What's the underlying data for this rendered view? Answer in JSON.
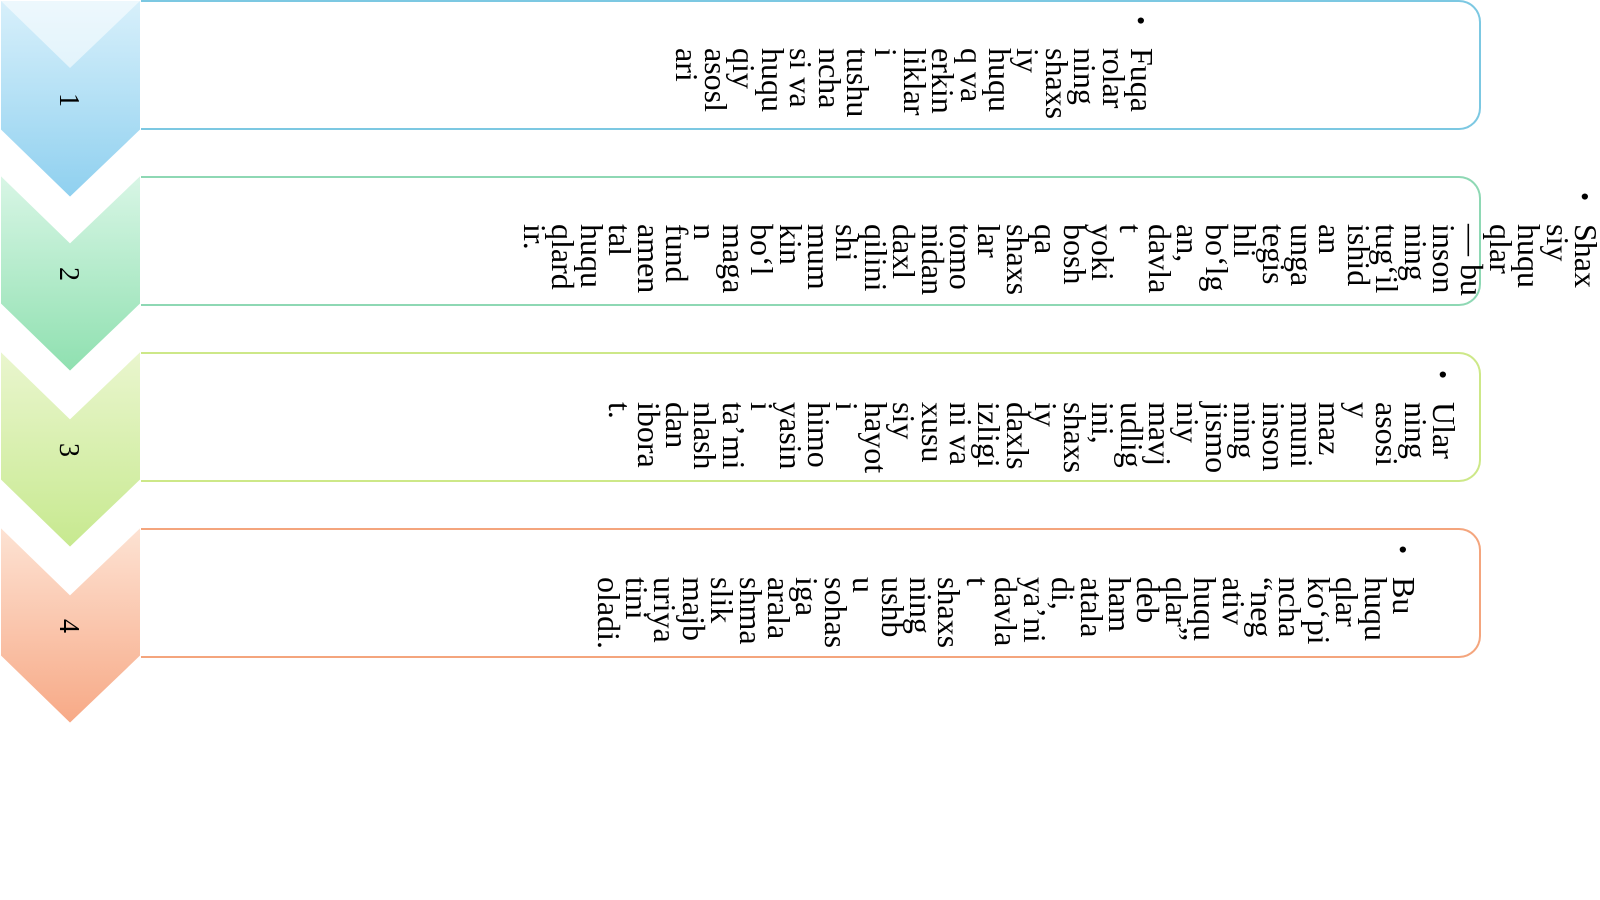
{
  "steps": [
    {
      "number": "1",
      "color_top": "#d8f0fb",
      "color_bottom": "#8fd0ef"
    },
    {
      "number": "2",
      "color_top": "#d9f6e6",
      "color_bottom": "#8fe0b0"
    },
    {
      "number": "3",
      "color_top": "#eaf6cf",
      "color_bottom": "#c7e98f"
    },
    {
      "number": "4",
      "color_top": "#fde3d4",
      "color_bottom": "#f7a986"
    }
  ],
  "overflow_text": {
    "bullet": "•",
    "columns": "Shax\nsiy\nhuqu\nqlar\n— bu\ninson\nning\ntug‘il\nishid\nan\nunga\ntegis\nhli\nbo‘lg\nan,\ndavla\nt\nyoki\nbosh\nqa\nshaxs\nlar\ntomo\nnidan\ndaxl\nqilini\nshi\nmum\nkin\nbo‘l\nmaga\nn\nfund\namen\ntal\nhuqu\nqlard\nir."
  },
  "panels": [
    {
      "bullet": "•",
      "columns": "Fuqa\nrolar\nning\nshaxs\niy\nhuqu\nq va\nerkin\nliklar\ni\ntushu\nncha\nsi va\nhuqu\nqiy\nasosl\nari"
    },
    {
      "bullet": "",
      "columns": ""
    },
    {
      "bullet": "•",
      "columns": "Ular\nning\nasosi\ny\nmaz\nmuni\ninson\nning\njismo\nniy\nmavj\nudlig\nini,\nshaxs\niy\ndaxls\nizligi\nni va\nxusu\nsiy\nhayot\ni\nhimo\nyasin\ni\nta’mi\nnlash\ndan\nibora\nt."
    },
    {
      "bullet": "•",
      "columns": "Bu\nhuqu\nqlar\nko‘pi\nncha\n“neg\nativ\nhuqu\nqlar”\ndeb\nham\natala\ndi,\nya’ni\ndavla\nt\nshaxs\nning\nushb\nu\nsohas\niga\narala\nshma\nslik\nmajb\nuriya\ntini\noladi."
    }
  ]
}
